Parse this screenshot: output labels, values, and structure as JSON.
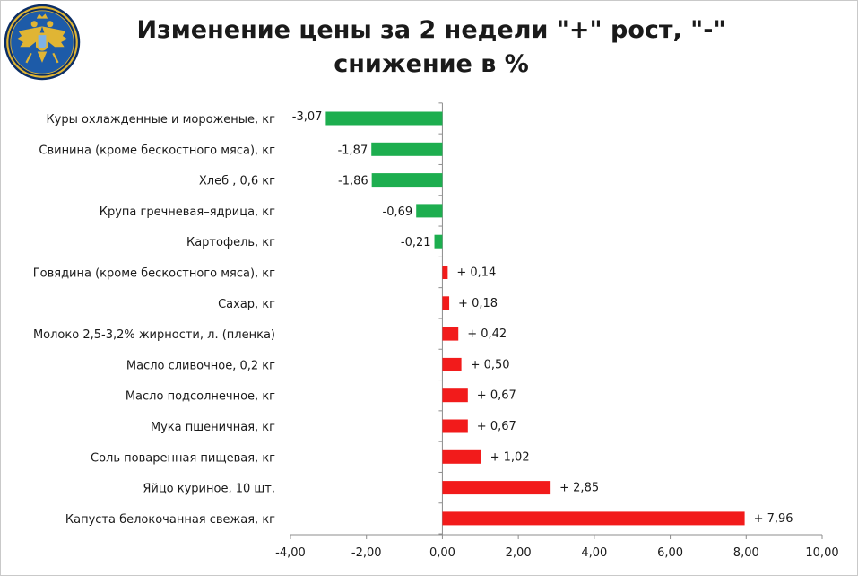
{
  "chart_data": {
    "type": "bar",
    "orientation": "horizontal",
    "title": "Изменение цены за 2 недели \"+\" рост, \"-\" снижение в %",
    "xlabel": "",
    "ylabel": "",
    "categories": [
      "Куры охлажденные и мороженые, кг",
      "Свинина (кроме бескостного мяса), кг",
      "Хлеб , 0,6 кг",
      "Крупа гречневая–ядрица, кг",
      "Картофель, кг",
      "Говядина (кроме бескостного мяса), кг",
      "Сахар, кг",
      "Молоко 2,5-3,2% жирности, л. (пленка)",
      "Масло сливочное, 0,2 кг",
      "Масло подсолнечное, кг",
      "Мука пшеничная, кг",
      "Соль поваренная пищевая, кг",
      "Яйцо куриное, 10 шт.",
      "Капуста белокочанная свежая, кг"
    ],
    "values": [
      -3.07,
      -1.87,
      -1.86,
      -0.69,
      -0.21,
      0.14,
      0.18,
      0.42,
      0.5,
      0.67,
      0.67,
      1.02,
      2.85,
      7.96
    ],
    "data_labels": [
      "-3,07",
      "-1,87",
      "-1,86",
      "-0,69",
      "-0,21",
      "+ 0,14",
      "+ 0,18",
      "+ 0,42",
      "+ 0,50",
      "+ 0,67",
      "+ 0,67",
      "+ 1,02",
      "+ 2,85",
      "+ 7,96"
    ],
    "xlim": [
      -4,
      10
    ],
    "x_ticks": [
      -4,
      -2,
      0,
      2,
      4,
      6,
      8,
      10
    ],
    "x_tick_labels": [
      "-4,00",
      "-2,00",
      "0,00",
      "2,00",
      "4,00",
      "6,00",
      "8,00",
      "10,00"
    ],
    "grid": false,
    "legend": "none",
    "colors": {
      "negative": "#1DAE4F",
      "positive": "#F21B1B",
      "axis": "#8c8c8c"
    }
  },
  "emblem": {
    "icon": "eagle-emblem-icon",
    "colors": {
      "ring": "#0B2E66",
      "field": "#1D5BA8",
      "gold": "#E0B534"
    }
  }
}
